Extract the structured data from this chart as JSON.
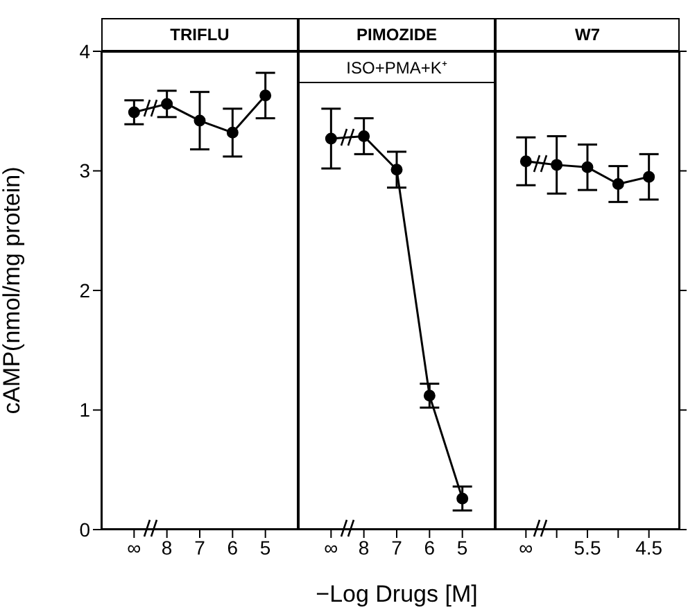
{
  "chart_data": [
    {
      "type": "line",
      "title": "TRIFLU",
      "ylabel": "cAMP(nmol/mg protein)",
      "categories": [
        "∞",
        "8",
        "7",
        "6",
        "5"
      ],
      "series": [
        {
          "color": "#000000",
          "values": [
            3.49,
            3.56,
            3.42,
            3.32,
            3.63
          ],
          "errors": [
            0.1,
            0.11,
            0.24,
            0.2,
            0.19
          ]
        }
      ],
      "ylim": [
        0,
        4
      ],
      "yticks": [
        0,
        1,
        2,
        3,
        4
      ],
      "marker": "circle",
      "line_style": "solid"
    },
    {
      "type": "line",
      "title": "PIMOZIDE",
      "subtitle": "ISO+PMA+K⁺",
      "xlabel": "−Log Drugs [M]",
      "categories": [
        "∞",
        "8",
        "7",
        "6",
        "5"
      ],
      "series": [
        {
          "color": "#000000",
          "values": [
            3.27,
            3.29,
            3.01,
            1.12,
            0.26
          ],
          "errors": [
            0.25,
            0.15,
            0.15,
            0.1,
            0.1
          ]
        }
      ],
      "ylim": [
        0,
        4
      ],
      "tick_labels": "x",
      "marker": "circle",
      "line_style": "solid"
    },
    {
      "type": "line",
      "title": "W7",
      "categories": [
        "∞",
        null,
        "5.5",
        null,
        "4.5"
      ],
      "series": [
        {
          "color": "#000000",
          "values": [
            3.08,
            3.05,
            3.03,
            2.89,
            2.95
          ],
          "errors": [
            0.2,
            0.24,
            0.19,
            0.15,
            0.19
          ]
        }
      ],
      "ylim": [
        0,
        4
      ],
      "yticks": [
        {
          "value": 0,
          "label": null
        },
        {
          "value": 1,
          "label": null
        },
        {
          "value": 2,
          "label": null
        },
        {
          "value": 3,
          "label": null
        },
        {
          "value": 4,
          "label": null
        }
      ],
      "tick_labels": "x",
      "marker": "circle",
      "line_style": "solid"
    }
  ]
}
